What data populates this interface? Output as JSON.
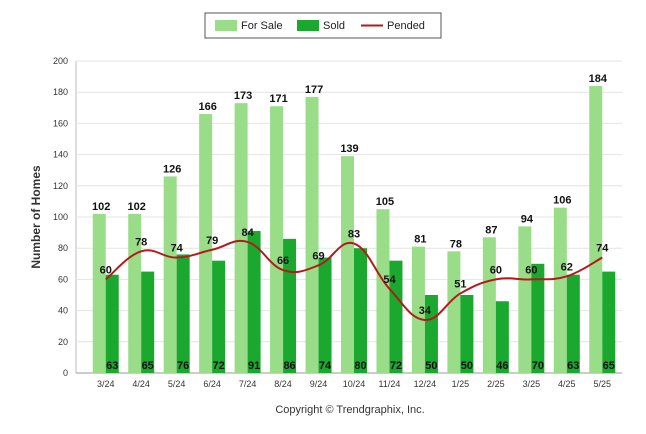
{
  "chart_data": {
    "type": "bar",
    "title": "",
    "xlabel": "",
    "ylabel": "Number of Homes",
    "ylim": [
      0,
      200
    ],
    "yticks": [
      0,
      20,
      40,
      60,
      80,
      100,
      120,
      140,
      160,
      180,
      200
    ],
    "grid": true,
    "legend_position": "top-center",
    "categories": [
      "3/24",
      "4/24",
      "5/24",
      "6/24",
      "7/24",
      "8/24",
      "9/24",
      "10/24",
      "11/24",
      "12/24",
      "1/25",
      "2/25",
      "3/25",
      "4/25",
      "5/25"
    ],
    "series": [
      {
        "name": "For Sale",
        "type": "bar",
        "color": "#99dd88",
        "values": [
          102,
          102,
          126,
          166,
          173,
          171,
          177,
          139,
          105,
          81,
          78,
          87,
          94,
          106,
          184
        ]
      },
      {
        "name": "Sold",
        "type": "bar",
        "color": "#1aa82e",
        "values": [
          63,
          65,
          76,
          72,
          91,
          86,
          74,
          80,
          72,
          50,
          50,
          46,
          70,
          63,
          65
        ]
      },
      {
        "name": "Pended",
        "type": "line",
        "color": "#b31b1b",
        "values": [
          60,
          78,
          74,
          79,
          84,
          66,
          69,
          83,
          54,
          34,
          51,
          60,
          60,
          62,
          74
        ]
      }
    ],
    "footer": "Copyright © Trendgraphix, Inc."
  }
}
